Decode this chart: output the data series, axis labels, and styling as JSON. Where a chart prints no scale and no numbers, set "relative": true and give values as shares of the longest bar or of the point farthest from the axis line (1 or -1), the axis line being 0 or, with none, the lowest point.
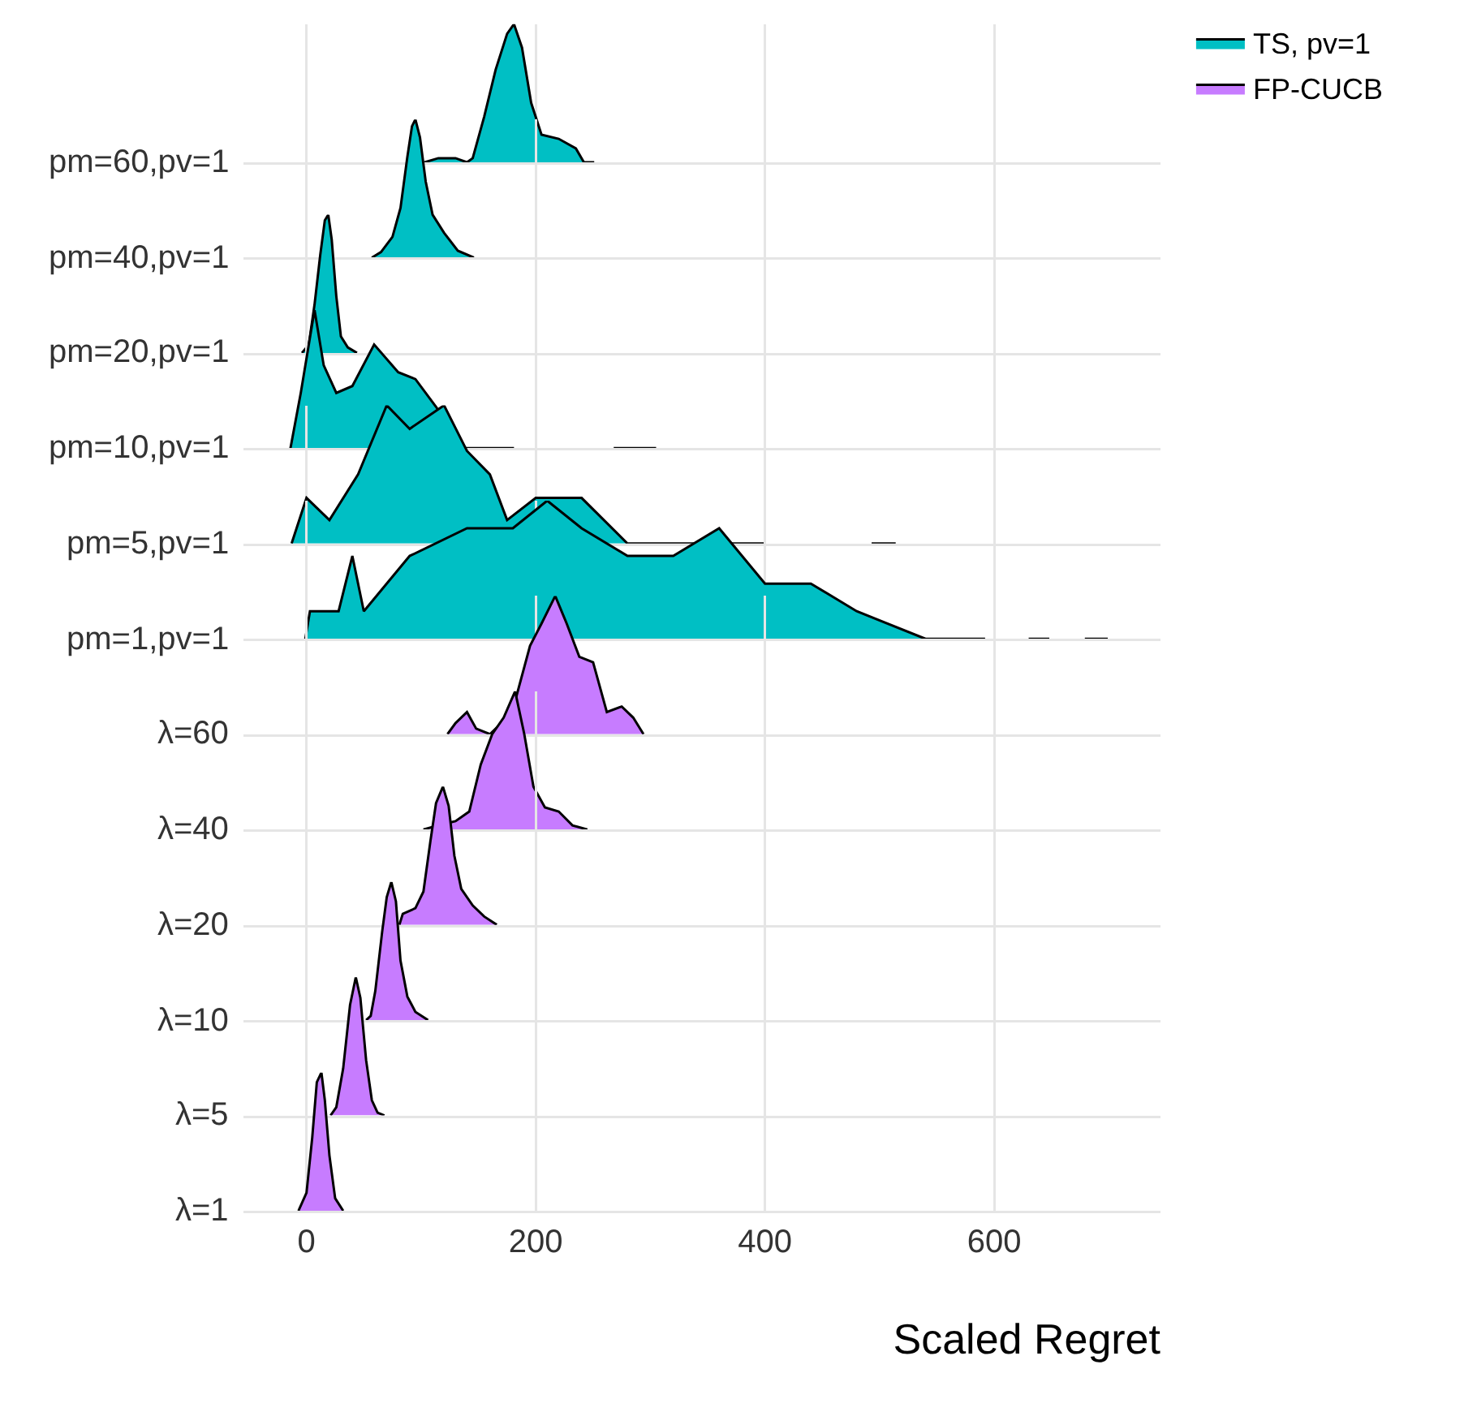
{
  "chart_data": [
    {
      "type": "area",
      "relative": true,
      "ylabel": "pm=60,pv=1",
      "xlim": [
        -55,
        745
      ],
      "xticks": [
        0,
        200,
        400,
        600
      ],
      "grid": "x",
      "tick_labels": false,
      "legend": "top right",
      "series": [
        {
          "name": "TS, pv=1",
          "color": "#00bfc4",
          "x": [
            103,
            115,
            130,
            140,
            145,
            155,
            165,
            175,
            181,
            188,
            196,
            205,
            220,
            235,
            242,
            251
          ],
          "values": [
            0,
            0.03,
            0.03,
            0,
            0.03,
            0.33,
            0.67,
            0.93,
            1,
            0.83,
            0.43,
            0.2,
            0.17,
            0.1,
            0,
            0
          ]
        }
      ]
    },
    {
      "type": "area",
      "relative": true,
      "ylabel": "pm=40,pv=1",
      "xlim": [
        -55,
        745
      ],
      "xticks": [
        0,
        200,
        400,
        600
      ],
      "grid": "x",
      "tick_labels": false,
      "series": [
        {
          "color": "#00bfc4",
          "x": [
            57,
            65,
            75,
            82,
            88,
            92,
            95,
            99,
            104,
            110,
            120,
            132,
            146
          ],
          "values": [
            0,
            0.04,
            0.15,
            0.36,
            0.73,
            0.95,
            1,
            0.87,
            0.55,
            0.31,
            0.18,
            0.05,
            0
          ]
        }
      ]
    },
    {
      "type": "area",
      "relative": true,
      "ylabel": "pm=20,pv=1",
      "xlim": [
        -55,
        745
      ],
      "xticks": [
        0,
        200,
        400,
        600
      ],
      "grid": "x",
      "tick_labels": false,
      "series": [
        {
          "color": "#00bfc4",
          "x": [
            -4,
            2,
            7,
            12,
            16,
            19,
            22,
            26,
            30,
            36,
            44
          ],
          "values": [
            0,
            0.06,
            0.35,
            0.71,
            0.96,
            1,
            0.82,
            0.41,
            0.12,
            0.04,
            0
          ]
        }
      ]
    },
    {
      "type": "area",
      "relative": true,
      "ylabel": "pm=10,pv=1",
      "xlim": [
        -55,
        745
      ],
      "xticks": [
        0,
        200,
        400,
        600
      ],
      "grid": "x",
      "tick_labels": false,
      "series": [
        {
          "color": "#00bfc4",
          "x": [
            -14,
            -5,
            7,
            15,
            26,
            40,
            59,
            80,
            95,
            113,
            137,
            181,
            220,
            268,
            305
          ],
          "values": [
            0,
            0.4,
            1,
            0.6,
            0.4,
            0.45,
            0.75,
            0.55,
            0.5,
            0.3,
            0,
            0,
            null,
            0,
            0
          ]
        }
      ]
    },
    {
      "type": "area",
      "relative": true,
      "ylabel": "pm=5,pv=1",
      "xlim": [
        -55,
        745
      ],
      "xticks": [
        0,
        200,
        400,
        600
      ],
      "grid": "x",
      "tick_labels": false,
      "series": [
        {
          "color": "#00bfc4",
          "x": [
            -13,
            0,
            20,
            45,
            70,
            90,
            120,
            140,
            160,
            175,
            200,
            240,
            280,
            300,
            400,
            450,
            493,
            514
          ],
          "values": [
            0,
            0.33,
            0.17,
            0.5,
            1,
            0.83,
            1,
            0.67,
            0.5,
            0.17,
            0.33,
            0.33,
            0,
            0,
            0,
            null,
            0,
            0
          ]
        }
      ]
    },
    {
      "type": "area",
      "relative": true,
      "ylabel": "pm=1,pv=1",
      "xlim": [
        -55,
        745
      ],
      "xticks": [
        0,
        200,
        400,
        600
      ],
      "grid": "x",
      "tick_labels": false,
      "series": [
        {
          "color": "#00bfc4",
          "x": [
            -1,
            3,
            28,
            40,
            50,
            90,
            140,
            180,
            210,
            240,
            280,
            320,
            360,
            400,
            440,
            480,
            540,
            592,
            610,
            630,
            648,
            660,
            679,
            699
          ],
          "values": [
            0,
            0.2,
            0.2,
            0.6,
            0.2,
            0.6,
            0.8,
            0.8,
            1,
            0.8,
            0.6,
            0.6,
            0.8,
            0.4,
            0.4,
            0.2,
            0,
            0,
            null,
            0,
            0,
            null,
            0,
            0
          ]
        }
      ]
    },
    {
      "type": "area",
      "relative": true,
      "ylabel": "λ=60",
      "xlim": [
        -55,
        745
      ],
      "xticks": [
        0,
        200,
        400,
        600
      ],
      "grid": "x",
      "tick_labels": false,
      "legend": "top right",
      "series": [
        {
          "name": "FP-CUCB",
          "color": "#c77cff",
          "x": [
            123,
            130,
            140,
            148,
            160,
            170,
            182,
            195,
            205,
            217,
            227,
            238,
            250,
            262,
            275,
            285,
            294
          ],
          "values": [
            0,
            0.08,
            0.16,
            0.04,
            0,
            0.08,
            0.24,
            0.64,
            0.8,
            1,
            0.8,
            0.56,
            0.52,
            0.16,
            0.2,
            0.12,
            0
          ]
        }
      ]
    },
    {
      "type": "area",
      "relative": true,
      "ylabel": "λ=40",
      "xlim": [
        -55,
        745
      ],
      "xticks": [
        0,
        200,
        400,
        600
      ],
      "grid": "x",
      "tick_labels": false,
      "series": [
        {
          "color": "#c77cff",
          "x": [
            102,
            115,
            130,
            142,
            152,
            162,
            172,
            182,
            190,
            198,
            208,
            220,
            232,
            245
          ],
          "values": [
            0,
            0.03,
            0.06,
            0.13,
            0.47,
            0.69,
            0.81,
            1,
            0.69,
            0.31,
            0.16,
            0.13,
            0.03,
            0
          ]
        }
      ]
    },
    {
      "type": "area",
      "relative": true,
      "ylabel": "λ=20",
      "xlim": [
        -55,
        745
      ],
      "xticks": [
        0,
        200,
        400,
        600
      ],
      "grid": "x",
      "tick_labels": false,
      "series": [
        {
          "color": "#c77cff",
          "x": [
            81,
            84,
            95,
            102,
            108,
            113,
            119,
            124,
            129,
            135,
            145,
            155,
            166
          ],
          "values": [
            0,
            0.08,
            0.12,
            0.24,
            0.6,
            0.88,
            1,
            0.86,
            0.5,
            0.26,
            0.14,
            0.06,
            0
          ]
        }
      ]
    },
    {
      "type": "area",
      "relative": true,
      "ylabel": "λ=10",
      "xlim": [
        -55,
        745
      ],
      "xticks": [
        0,
        200,
        400,
        600
      ],
      "grid": "x",
      "tick_labels": false,
      "series": [
        {
          "color": "#c77cff",
          "x": [
            52,
            56,
            60,
            66,
            70,
            74,
            78,
            82,
            88,
            95,
            106
          ],
          "values": [
            0,
            0.03,
            0.21,
            0.64,
            0.89,
            1,
            0.86,
            0.43,
            0.17,
            0.06,
            0
          ]
        }
      ]
    },
    {
      "type": "area",
      "relative": true,
      "ylabel": "λ=5",
      "xlim": [
        -55,
        745
      ],
      "xticks": [
        0,
        200,
        400,
        600
      ],
      "grid": "x",
      "tick_labels": false,
      "series": [
        {
          "color": "#c77cff",
          "x": [
            21,
            26,
            32,
            38,
            43,
            47,
            52,
            57,
            62,
            68
          ],
          "values": [
            0,
            0.06,
            0.34,
            0.8,
            1,
            0.85,
            0.4,
            0.11,
            0.02,
            0
          ]
        }
      ]
    },
    {
      "type": "area",
      "relative": true,
      "ylabel": "λ=1",
      "xlabel": "Scaled Regret",
      "xlim": [
        -55,
        745
      ],
      "xticks": [
        0,
        200,
        400,
        600
      ],
      "grid": "x",
      "tick_labels": "x",
      "series": [
        {
          "color": "#c77cff",
          "x": [
            -7,
            0,
            5,
            9,
            13,
            16,
            20,
            25,
            32
          ],
          "values": [
            0,
            0.13,
            0.53,
            0.93,
            1,
            0.8,
            0.4,
            0.09,
            0
          ]
        }
      ]
    }
  ]
}
